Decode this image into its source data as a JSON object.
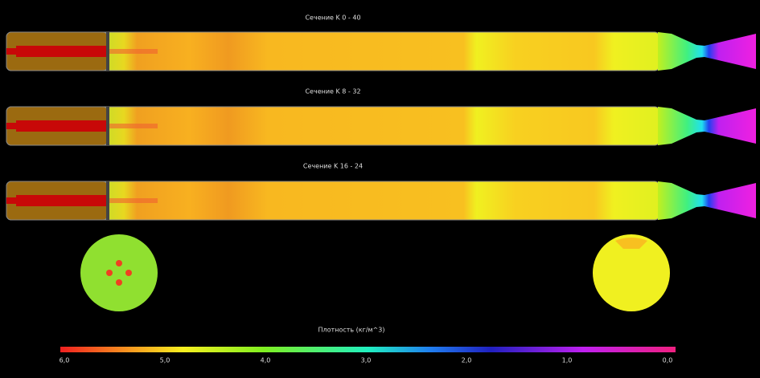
{
  "sections": [
    "Сечение K 0 - 40",
    "Сечение K 8 - 32",
    "Сечение K 16 - 24"
  ],
  "legend": {
    "title": "Плотность (кг/м^3)",
    "labels": [
      "6,0",
      "5,0",
      "4,0",
      "3,0",
      "2,0",
      "1,0",
      "0,0"
    ]
  }
}
